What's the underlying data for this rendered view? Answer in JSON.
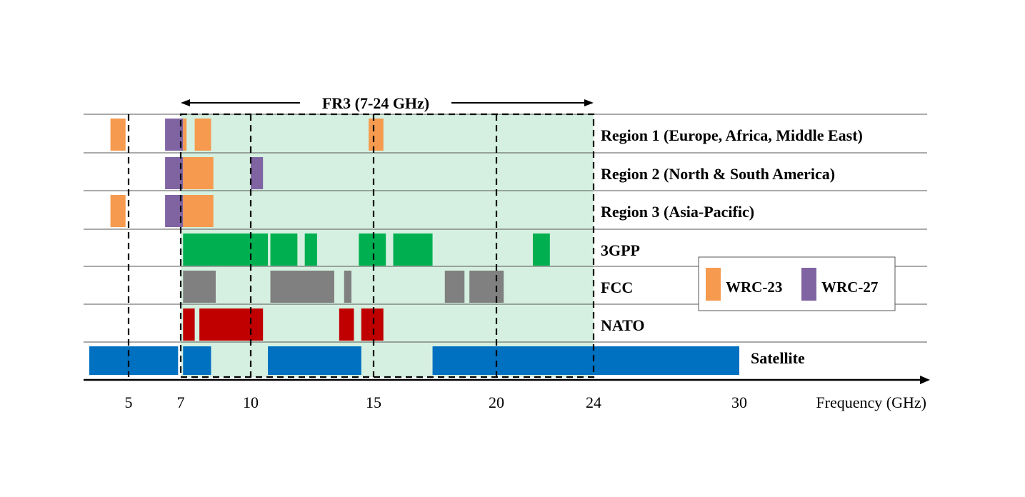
{
  "chart_data": {
    "type": "range-bar",
    "title": "FR3 (7-24 GHz)",
    "highlight_range": [
      7,
      24
    ],
    "xlabel": "Frequency (GHz)",
    "x_ticks": [
      5,
      7,
      10,
      15,
      20,
      24,
      30
    ],
    "dashed_reference_lines": [
      5,
      10,
      15,
      20
    ],
    "legend": {
      "position": "right",
      "entries": [
        {
          "name": "WRC-23",
          "color": "#F59A4E"
        },
        {
          "name": "WRC-27",
          "color": "#8064A2"
        }
      ]
    },
    "rows": [
      {
        "label": "Region 1 (Europe, Africa, Middle East)",
        "segments": [
          {
            "from": 4.4,
            "to": 4.9,
            "color": "#F59A4E"
          },
          {
            "from": 6.4,
            "to": 7.1,
            "color": "#8064A2"
          },
          {
            "from": 7.1,
            "to": 7.25,
            "color": "#F59A4E"
          },
          {
            "from": 7.6,
            "to": 8.3,
            "color": "#F59A4E"
          },
          {
            "from": 14.8,
            "to": 15.4,
            "color": "#F59A4E"
          }
        ]
      },
      {
        "label": "Region 2 (North & South America)",
        "segments": [
          {
            "from": 6.4,
            "to": 7.1,
            "color": "#8064A2"
          },
          {
            "from": 7.1,
            "to": 8.4,
            "color": "#F59A4E"
          },
          {
            "from": 10.0,
            "to": 10.5,
            "color": "#8064A2"
          }
        ]
      },
      {
        "label": "Region 3 (Asia-Pacific)",
        "segments": [
          {
            "from": 4.4,
            "to": 4.9,
            "color": "#F59A4E"
          },
          {
            "from": 6.4,
            "to": 7.1,
            "color": "#8064A2"
          },
          {
            "from": 7.1,
            "to": 8.4,
            "color": "#F59A4E"
          }
        ]
      },
      {
        "label": "3GPP",
        "segments": [
          {
            "from": 7.1,
            "to": 10.7,
            "color": "#00B050"
          },
          {
            "from": 10.8,
            "to": 11.9,
            "color": "#00B050"
          },
          {
            "from": 12.2,
            "to": 12.7,
            "color": "#00B050"
          },
          {
            "from": 14.4,
            "to": 15.5,
            "color": "#00B050"
          },
          {
            "from": 15.8,
            "to": 17.4,
            "color": "#00B050"
          },
          {
            "from": 21.5,
            "to": 22.2,
            "color": "#00B050"
          }
        ]
      },
      {
        "label": "FCC",
        "segments": [
          {
            "from": 7.1,
            "to": 8.5,
            "color": "#808080"
          },
          {
            "from": 10.8,
            "to": 13.4,
            "color": "#808080"
          },
          {
            "from": 13.8,
            "to": 14.1,
            "color": "#808080"
          },
          {
            "from": 17.9,
            "to": 18.7,
            "color": "#808080"
          },
          {
            "from": 18.9,
            "to": 20.3,
            "color": "#808080"
          }
        ]
      },
      {
        "label": "NATO",
        "segments": [
          {
            "from": 7.1,
            "to": 7.6,
            "color": "#C00000"
          },
          {
            "from": 7.8,
            "to": 10.5,
            "color": "#C00000"
          },
          {
            "from": 13.6,
            "to": 14.2,
            "color": "#C00000"
          },
          {
            "from": 14.5,
            "to": 15.4,
            "color": "#C00000"
          }
        ]
      },
      {
        "label": "Satellite",
        "segments": [
          {
            "from": 3.7,
            "to": 6.9,
            "color": "#0070C0"
          },
          {
            "from": 7.1,
            "to": 8.3,
            "color": "#0070C0"
          },
          {
            "from": 10.7,
            "to": 14.5,
            "color": "#0070C0"
          },
          {
            "from": 17.4,
            "to": 30.0,
            "color": "#0070C0"
          }
        ]
      }
    ]
  }
}
